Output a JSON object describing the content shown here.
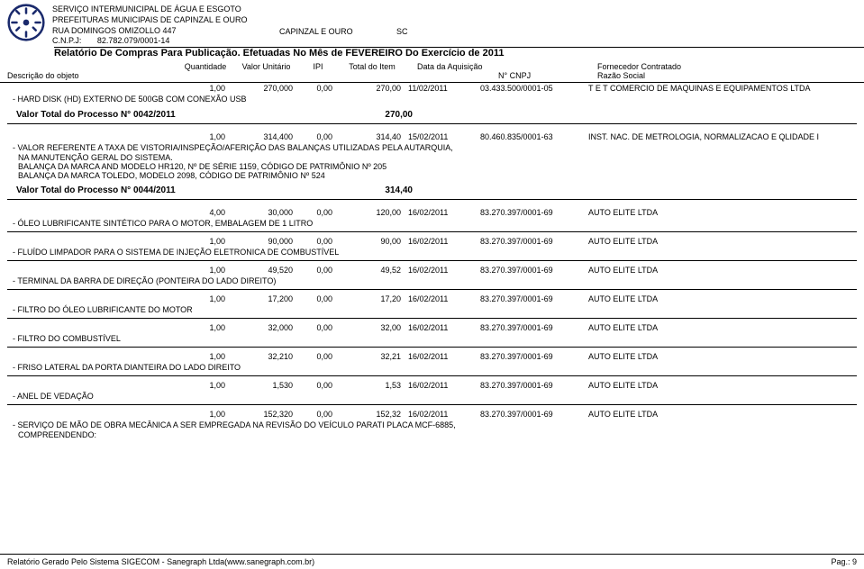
{
  "header": {
    "org1": "SERVIÇO INTERMUNICIPAL DE ÁGUA E ESGOTO",
    "org2": "PREFEITURAS MUNICIPAIS DE CAPINZAL E OURO",
    "address": "RUA DOMINGOS OMIZOLLO 447",
    "city": "CAPINZAL E OURO",
    "state": "SC",
    "cnpj_label": "C.N.P.J:",
    "cnpj_value": "82.782.079/0001-14",
    "report_title": "Relatório De Compras Para Publicação.  Efetuadas No Mês de FEVEREIRO Do Exercício de  2011"
  },
  "columns": {
    "desc": "Descrição do objeto",
    "qty": "Quantidade",
    "unit": "Valor Unitário",
    "ipi": "IPI",
    "total": "Total do Item",
    "date": "Data da Aquisição",
    "cnpj": "N° CNPJ",
    "supplier_top": "Fornecedor Contratado",
    "supplier_bottom": "Razão Social"
  },
  "rows": [
    {
      "qty": "1,00",
      "unit": "270,000",
      "ipi": "0,00",
      "total": "270,00",
      "date": "11/02/2011",
      "cnpj": "03.433.500/0001-05",
      "supplier": "T E T COMERCIO DE MAQUINAS E EQUIPAMENTOS LTDA",
      "desc": [
        "HARD DISK (HD) EXTERNO DE 500GB COM CONEXÃO USB"
      ],
      "proc_after": {
        "label": "Valor Total  do Processo N°  0042/2011",
        "amount": "270,00"
      }
    },
    {
      "qty": "1,00",
      "unit": "314,400",
      "ipi": "0,00",
      "total": "314,40",
      "date": "15/02/2011",
      "cnpj": "80.460.835/0001-63",
      "supplier": "INST. NAC. DE METROLOGIA, NORMALIZACAO E QLIDADE I",
      "desc": [
        "VALOR REFERENTE A TAXA DE VISTORIA/INSPEÇÃO/AFERIÇÃO DAS BALANÇAS UTILIZADAS PELA AUTARQUIA,"
      ],
      "desc_cont": [
        "NA MANUTENÇÃO GERAL DO SISTEMA.",
        "BALANÇA DA MARCA AND MODELO HR120, Nº DE SÉRIE 1159, CÓDIGO DE PATRIMÔNIO Nº 205",
        "BALANÇA DA MARCA TOLEDO, MODELO 2098, CÓDIGO DE PATRIMÔNIO Nº 524"
      ],
      "proc_after": {
        "label": "Valor Total  do Processo N°  0044/2011",
        "amount": "314,40"
      }
    },
    {
      "qty": "4,00",
      "unit": "30,000",
      "ipi": "0,00",
      "total": "120,00",
      "date": "16/02/2011",
      "cnpj": "83.270.397/0001-69",
      "supplier": "AUTO ELITE LTDA",
      "desc": [
        "ÓLEO LUBRIFICANTE SINTÉTICO PARA O MOTOR, EMBALAGEM DE 1 LITRO"
      ]
    },
    {
      "qty": "1,00",
      "unit": "90,000",
      "ipi": "0,00",
      "total": "90,00",
      "date": "16/02/2011",
      "cnpj": "83.270.397/0001-69",
      "supplier": "AUTO ELITE LTDA",
      "desc": [
        "FLUÍDO LIMPADOR PARA O SISTEMA DE INJEÇÃO ELETRONICA DE COMBUSTÍVEL"
      ]
    },
    {
      "qty": "1,00",
      "unit": "49,520",
      "ipi": "0,00",
      "total": "49,52",
      "date": "16/02/2011",
      "cnpj": "83.270.397/0001-69",
      "supplier": "AUTO ELITE LTDA",
      "desc": [
        "TERMINAL DA BARRA DE DIREÇÃO (PONTEIRA DO LADO DIREITO)"
      ]
    },
    {
      "qty": "1,00",
      "unit": "17,200",
      "ipi": "0,00",
      "total": "17,20",
      "date": "16/02/2011",
      "cnpj": "83.270.397/0001-69",
      "supplier": "AUTO ELITE LTDA",
      "desc": [
        "FILTRO DO ÓLEO LUBRIFICANTE DO MOTOR"
      ]
    },
    {
      "qty": "1,00",
      "unit": "32,000",
      "ipi": "0,00",
      "total": "32,00",
      "date": "16/02/2011",
      "cnpj": "83.270.397/0001-69",
      "supplier": "AUTO ELITE LTDA",
      "desc": [
        "FILTRO DO COMBUSTÍVEL"
      ]
    },
    {
      "qty": "1,00",
      "unit": "32,210",
      "ipi": "0,00",
      "total": "32,21",
      "date": "16/02/2011",
      "cnpj": "83.270.397/0001-69",
      "supplier": "AUTO ELITE LTDA",
      "desc": [
        "FRISO LATERAL DA PORTA DIANTEIRA DO LADO DIREITO"
      ]
    },
    {
      "qty": "1,00",
      "unit": "1,530",
      "ipi": "0,00",
      "total": "1,53",
      "date": "16/02/2011",
      "cnpj": "83.270.397/0001-69",
      "supplier": "AUTO ELITE LTDA",
      "desc": [
        "ANEL DE VEDAÇÃO"
      ]
    },
    {
      "qty": "1,00",
      "unit": "152,320",
      "ipi": "0,00",
      "total": "152,32",
      "date": "16/02/2011",
      "cnpj": "83.270.397/0001-69",
      "supplier": "AUTO ELITE LTDA",
      "desc": [
        "SERVIÇO DE MÃO DE OBRA MECÂNICA A SER EMPREGADA NA REVISÃO DO VEÍCULO PARATI PLACA MCF-6885,"
      ],
      "desc_cont": [
        "COMPREENDENDO:"
      ]
    }
  ],
  "footer": {
    "left": "Relatório Gerado Pelo Sistema SIGECOM - Sanegraph Ltda(www.sanegraph.com.br)",
    "right": "Pag.: 9"
  },
  "style": {
    "logo_color": "#1a2a6c",
    "text_color": "#000000"
  }
}
